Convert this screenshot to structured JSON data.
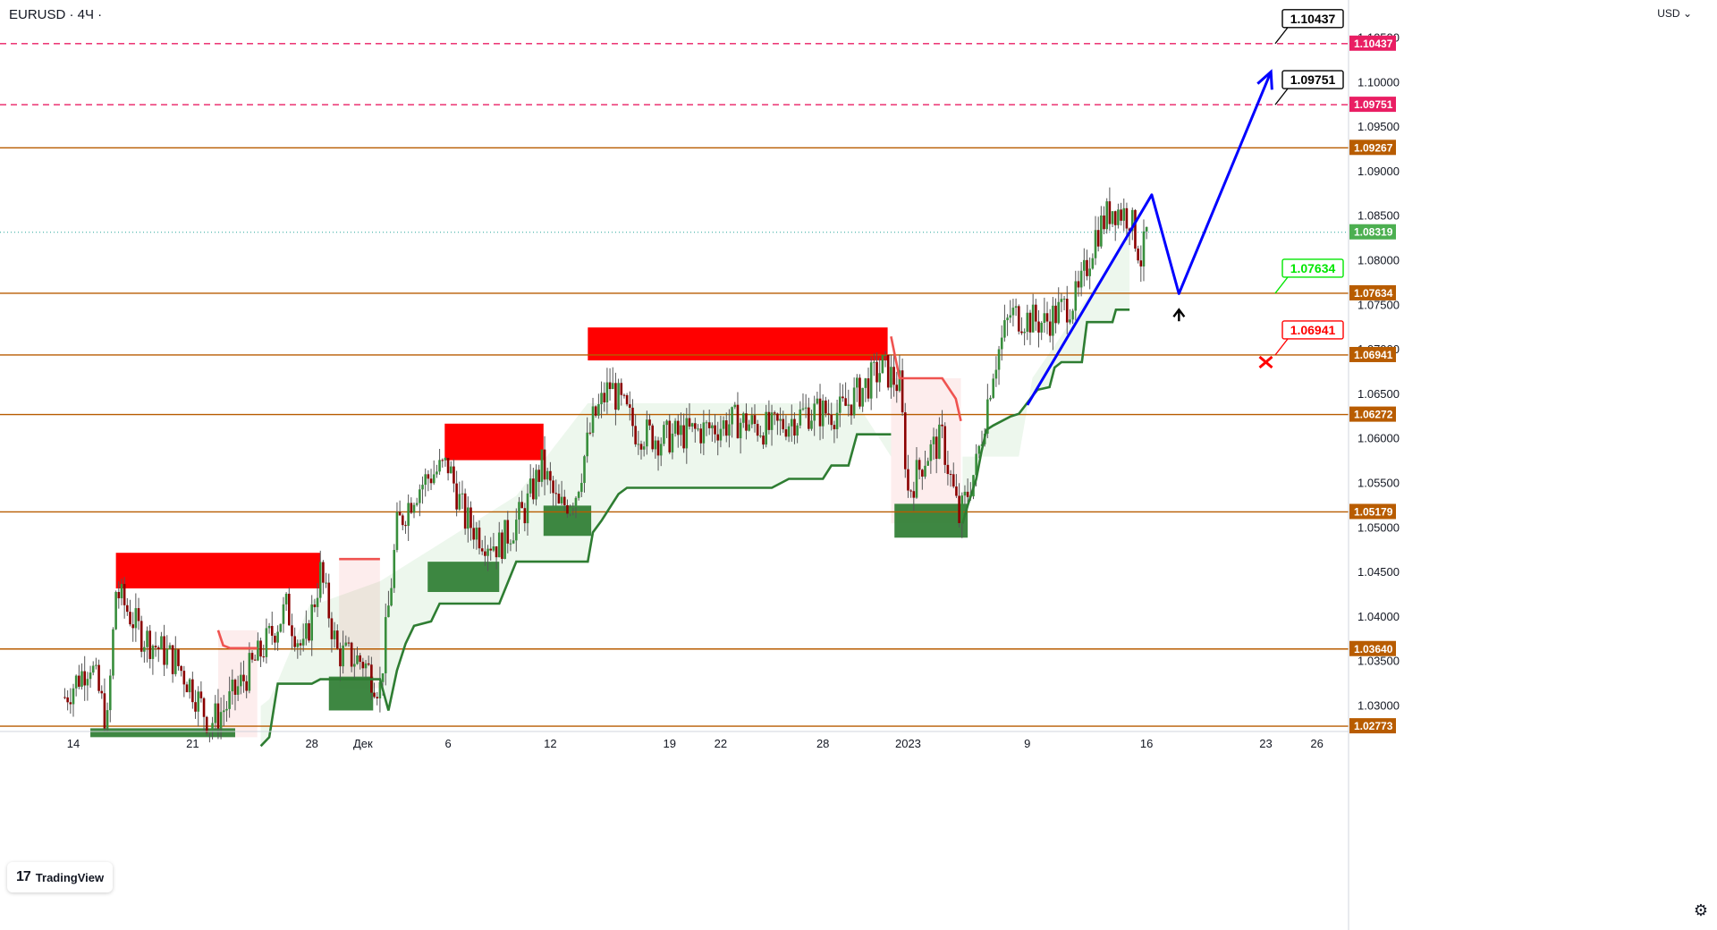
{
  "header": {
    "symbol": "EURUSD · 4Ч ·",
    "currency": "USD"
  },
  "branding": {
    "logo_mark": "17",
    "logo_text": "TradingView",
    "logo_icon": "tradingview-logo-icon"
  },
  "settings": {
    "icon": "gear-icon",
    "glyph": "⚙"
  },
  "colors": {
    "bull": "#26a69a",
    "bear": "#ef5350",
    "candle_green": "#388e3c",
    "candle_red": "#8b0000",
    "level": "#b85c00",
    "pink": "#e91e63",
    "supply": "#ff0000",
    "demand": "#2e7d32",
    "forecast": "#0000ff",
    "current": "#4caf50",
    "callout_green": "#00e600",
    "callout_red": "#ff0000"
  },
  "chart_data": {
    "type": "candlestick",
    "title": "EURUSD · 4Ч ·",
    "ylim": [
      1.0265,
      1.1085
    ],
    "y_ticks": [
      "1.10500",
      "1.10000",
      "1.09500",
      "1.09000",
      "1.08500",
      "1.08000",
      "1.07500",
      "1.07000",
      "1.06500",
      "1.06000",
      "1.05500",
      "1.05000",
      "1.04500",
      "1.04000",
      "1.03500",
      "1.03000"
    ],
    "x_ticks": [
      {
        "label": "14",
        "day": 0
      },
      {
        "label": "21",
        "day": 7
      },
      {
        "label": "28",
        "day": 14
      },
      {
        "label": "Дек",
        "day": 17
      },
      {
        "label": "6",
        "day": 22
      },
      {
        "label": "12",
        "day": 28
      },
      {
        "label": "19",
        "day": 35
      },
      {
        "label": "22",
        "day": 38
      },
      {
        "label": "28",
        "day": 44
      },
      {
        "label": "2023",
        "day": 49
      },
      {
        "label": "9",
        "day": 56
      },
      {
        "label": "16",
        "day": 63
      },
      {
        "label": "23",
        "day": 70
      },
      {
        "label": "26",
        "day": 73
      }
    ],
    "levels": [
      {
        "price": 1.10437,
        "label": "1.10437",
        "style": "dashed",
        "color": "pink"
      },
      {
        "price": 1.09751,
        "label": "1.09751",
        "style": "dashed",
        "color": "pink"
      },
      {
        "price": 1.09267,
        "label": "1.09267",
        "style": "solid",
        "color": "level"
      },
      {
        "price": 1.07634,
        "label": "1.07634",
        "style": "solid",
        "color": "level"
      },
      {
        "price": 1.06941,
        "label": "1.06941",
        "style": "solid",
        "color": "level"
      },
      {
        "price": 1.06272,
        "label": "1.06272",
        "style": "solid",
        "color": "level"
      },
      {
        "price": 1.05179,
        "label": "1.05179",
        "style": "solid",
        "color": "level"
      },
      {
        "price": 1.0364,
        "label": "1.03640",
        "style": "solid",
        "color": "level"
      },
      {
        "price": 1.02773,
        "label": "1.02773",
        "style": "solid",
        "color": "level"
      }
    ],
    "current_price": {
      "price": 1.08319,
      "label": "1.08319"
    },
    "callouts": [
      {
        "label": "1.10437",
        "price": 1.10437,
        "day": 70.5,
        "border": "#000000",
        "text": "#000000"
      },
      {
        "label": "1.09751",
        "price": 1.09751,
        "day": 70.5,
        "border": "#000000",
        "text": "#000000"
      },
      {
        "label": "1.07634",
        "price": 1.07634,
        "day": 70.5,
        "border": "#00e600",
        "text": "#00e600"
      },
      {
        "label": "1.06941",
        "price": 1.06941,
        "day": 70.5,
        "border": "#ff0000",
        "text": "#ff0000"
      }
    ],
    "supply_zones": [
      {
        "d0": 2.5,
        "d1": 14.5,
        "p0": 1.0432,
        "p1": 1.0472
      },
      {
        "d0": 21.8,
        "d1": 27.6,
        "p0": 1.0576,
        "p1": 1.0617
      },
      {
        "d0": 30.2,
        "d1": 47.8,
        "p0": 1.0688,
        "p1": 1.0725
      }
    ],
    "demand_zones": [
      {
        "d0": 1.0,
        "d1": 9.5,
        "p0": 1.0265,
        "p1": 1.0275
      },
      {
        "d0": 15.0,
        "d1": 17.6,
        "p0": 1.0295,
        "p1": 1.0333
      },
      {
        "d0": 20.8,
        "d1": 25.0,
        "p0": 1.0428,
        "p1": 1.0462
      },
      {
        "d0": 27.6,
        "d1": 30.4,
        "p0": 1.0491,
        "p1": 1.0525
      },
      {
        "d0": 48.2,
        "d1": 52.5,
        "p0": 1.0489,
        "p1": 1.0527
      }
    ],
    "trail_up": [
      {
        "day": 11,
        "price": 1.0255
      },
      {
        "day": 11.5,
        "price": 1.0265
      },
      {
        "day": 12,
        "price": 1.0325
      },
      {
        "day": 14,
        "price": 1.0325
      },
      {
        "day": 14.5,
        "price": 1.033
      },
      {
        "day": 18,
        "price": 1.033
      },
      {
        "day": 18.5,
        "price": 1.0295
      },
      {
        "day": 19,
        "price": 1.034
      },
      {
        "day": 19.5,
        "price": 1.037
      },
      {
        "day": 20,
        "price": 1.039
      },
      {
        "day": 21,
        "price": 1.0395
      },
      {
        "day": 21.5,
        "price": 1.0415
      },
      {
        "day": 25,
        "price": 1.0415
      },
      {
        "day": 26,
        "price": 1.0462
      },
      {
        "day": 30.2,
        "price": 1.0462
      },
      {
        "day": 30.5,
        "price": 1.0495
      },
      {
        "day": 31,
        "price": 1.0508
      },
      {
        "day": 32,
        "price": 1.0538
      },
      {
        "day": 32.5,
        "price": 1.0545
      },
      {
        "day": 41,
        "price": 1.0545
      },
      {
        "day": 42,
        "price": 1.0555
      },
      {
        "day": 44,
        "price": 1.0555
      },
      {
        "day": 44.5,
        "price": 1.057
      },
      {
        "day": 45.5,
        "price": 1.057
      },
      {
        "day": 46,
        "price": 1.0605
      },
      {
        "day": 48,
        "price": 1.0605
      }
    ],
    "trail_up_2": [
      {
        "day": 52.2,
        "price": 1.0505
      },
      {
        "day": 52.5,
        "price": 1.0525
      },
      {
        "day": 53,
        "price": 1.0555
      },
      {
        "day": 53.3,
        "price": 1.0585
      },
      {
        "day": 53.6,
        "price": 1.061
      },
      {
        "day": 54,
        "price": 1.0615
      },
      {
        "day": 55,
        "price": 1.0625
      },
      {
        "day": 55.5,
        "price": 1.0628
      },
      {
        "day": 56.3,
        "price": 1.0648
      },
      {
        "day": 56.6,
        "price": 1.0655
      },
      {
        "day": 57.3,
        "price": 1.0658
      },
      {
        "day": 57.6,
        "price": 1.068
      },
      {
        "day": 58,
        "price": 1.0686
      },
      {
        "day": 59.2,
        "price": 1.0686
      },
      {
        "day": 59.5,
        "price": 1.0731
      },
      {
        "day": 61,
        "price": 1.0731
      },
      {
        "day": 61.2,
        "price": 1.0745
      },
      {
        "day": 62,
        "price": 1.0745
      }
    ],
    "trail_down": [
      {
        "day": 8.5,
        "price": 1.0385
      },
      {
        "day": 8.8,
        "price": 1.0368
      },
      {
        "day": 9.2,
        "price": 1.0365
      },
      {
        "day": 10.8,
        "price": 1.0365
      },
      {
        "day": 15.6,
        "price": 1.0465
      },
      {
        "day": 18,
        "price": 1.0465
      },
      {
        "day": 48,
        "price": 1.0715
      },
      {
        "day": 48.5,
        "price": 1.0668
      },
      {
        "day": 51,
        "price": 1.0668
      },
      {
        "day": 51.8,
        "price": 1.0645
      },
      {
        "day": 52.1,
        "price": 1.062
      }
    ],
    "forecast_path": [
      {
        "day": 56.0,
        "price": 1.0638
      },
      {
        "day": 63.3,
        "price": 1.0874
      },
      {
        "day": 64.9,
        "price": 1.0763
      },
      {
        "day": 70.3,
        "price": 1.1012
      }
    ],
    "markers": [
      {
        "type": "up-arrow",
        "day": 64.9,
        "price": 1.0742,
        "name": "up-arrow-icon"
      },
      {
        "type": "x-mark",
        "day": 70.0,
        "price": 1.0686,
        "name": "x-mark-icon"
      }
    ],
    "candles_note": "OHLC bars approximated from the figure"
  }
}
